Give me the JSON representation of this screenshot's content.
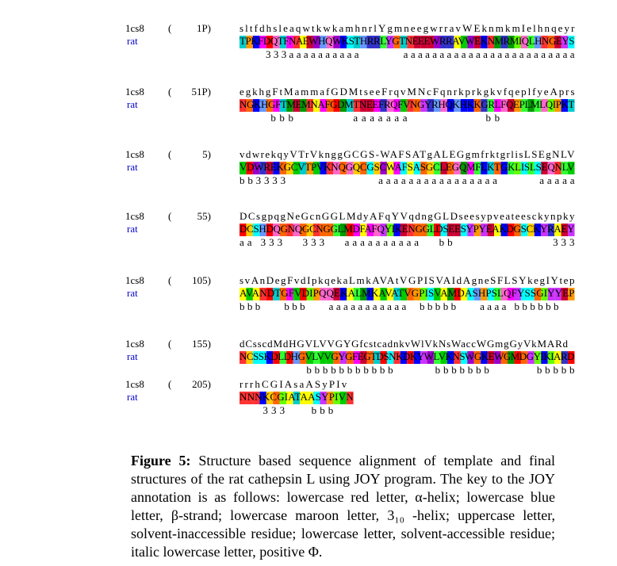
{
  "blocks": [
    {
      "id": "1cs8",
      "open": "(",
      "pos": "1P)",
      "species": "rat",
      "template": "sltfdhsleaqwtkwkamhnrlYgmneegwrravWEknmkmIelhnqeyr",
      "rat": "TPKFDQTFNAEWHQWKSTHRRLYGTNEEEWRRAVWEKNMRMIQLHNGEYS",
      "annotation": "     333aaaaaaaaaa        aaaaaaaaaaaaaaaaaaaaaaaa"
    },
    {
      "id": "1cs8",
      "open": "(",
      "pos": "51P)",
      "species": "rat",
      "template": "egkhgFtMammafGDMtseeFrqvMNcFqnrkprkgkvfqeplfyeAprs",
      "rat": "NGKHGFTMEMNAFGDMTNEEFRQFVNGYRHQKHKKGRLFQEPLMLQIPKT",
      "annotation": "     bbb         aaaaaaa            bb            "
    },
    {
      "id": "1cs8",
      "open": "(",
      "pos": "5)",
      "species": "rat",
      "template": "vdwrekqyVTrVknggGCGS-WAFSATgALEGgmfrktgrlisLSEgNLV",
      "rat": "VDWREKGCVTPVKNQGQCGSCWAFSASGCLEGQMFLKTGKLISLSEQNLV",
      "annotation": "bb3333                aaaaaaaaaaaaaaaa       aaaaa"
    },
    {
      "id": "1cs8",
      "open": "(",
      "pos": "55)",
      "species": "rat",
      "template": "DCsgpqgNeGcnGGLMdyAFqYVqdngGLDseesypveateesckynpky",
      "rat": "DCSHDQGNQGCNGGLMDFAFQYIKENGGLDSEESYPYEAKDGSCKYRAEY",
      "annotation": "aa 333   333   aaaaaaaaaa   bb                 333"
    },
    {
      "id": "1cs8",
      "open": "(",
      "pos": "105)",
      "species": "rat",
      "template": "svAnDegFvdIpkqekaLmkAVAtVGPISVAIdAgneSFLSYkegIYtep",
      "rat": "AVANDTGFVDIPQQEKALMKAVATVGPISVAMDASHPSLQFYSSGIYYEP",
      "annotation": "bbb    bbb    aaaaaaaaaaa  bbbbb    aaaa bbbbbb   "
    },
    {
      "id": "1cs8",
      "open": "(",
      "pos": "155)",
      "species": "rat",
      "template": "dCsscdMdHGVLVVGYGfcstcadnkvWlVkNsWaccWGmgGyVkMARd",
      "rat": "NCSSKDLDHGVLVVGYGFEGTDSNKDKYWLVKNSWGKEWGMDGYIKIARD",
      "annotation": "            bbbbbbbbbbb       bbbbbbb        bbbbb"
    },
    {
      "id": "1cs8",
      "open": "(",
      "pos": "205)",
      "species": "rat",
      "template": "rrrhCGIAsaASyPIv",
      "rat": "NNNKCGIATAASYPIVN",
      "annotation": "    333    bbb"
    }
  ],
  "caption": {
    "label": "Figure 5:",
    "text": "Structure based sequence alignment of template and final structures of the rat cathepsin L using JOY program. The key to the JOY annotation is as follows: lowercase red letter, α-helix; lowercase blue letter, β-strand; lowercase maroon letter, 3₁₀ -helix; uppercase letter, solvent-inaccessible residue; lowercase letter, solvent-accessible residue; italic lowercase letter, positive Φ."
  }
}
